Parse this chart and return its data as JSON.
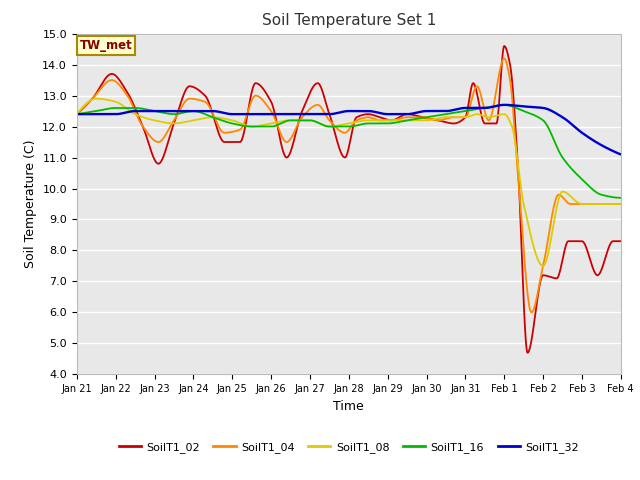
{
  "title": "Soil Temperature Set 1",
  "xlabel": "Time",
  "ylabel": "Soil Temperature (C)",
  "ylim": [
    4.0,
    15.0
  ],
  "yticks": [
    4.0,
    5.0,
    6.0,
    7.0,
    8.0,
    9.0,
    10.0,
    11.0,
    12.0,
    13.0,
    14.0,
    15.0
  ],
  "annotation": "TW_met",
  "plot_bg": "#e8e8e8",
  "fig_bg": "#ffffff",
  "series_colors": {
    "SoilT1_02": "#cc0000",
    "SoilT1_04": "#ff8800",
    "SoilT1_08": "#ddcc00",
    "SoilT1_16": "#00bb00",
    "SoilT1_32": "#0000cc"
  },
  "legend_labels": [
    "SoilT1_02",
    "SoilT1_04",
    "SoilT1_08",
    "SoilT1_16",
    "SoilT1_32"
  ],
  "xtick_labels": [
    "Jan 21",
    "Jan 22",
    "Jan 23",
    "Jan 24",
    "Jan 25",
    "Jan 26",
    "Jan 27",
    "Jan 28",
    "Jan 29",
    "Jan 30",
    "Jan 31",
    "Feb 1",
    "Feb 2",
    "Feb 3",
    "Feb 4"
  ],
  "cp02_x": [
    0.0,
    0.4,
    0.9,
    1.3,
    1.7,
    2.1,
    2.5,
    2.9,
    3.3,
    3.8,
    4.2,
    4.6,
    5.0,
    5.4,
    5.8,
    6.2,
    6.5,
    6.9,
    7.2,
    7.5,
    7.8,
    8.1,
    8.5,
    8.9,
    9.3,
    9.7,
    10.0,
    10.2,
    10.5,
    10.8,
    11.0,
    11.15,
    11.35,
    11.6,
    12.0,
    12.35,
    12.65,
    13.0,
    13.4,
    13.8,
    14.0
  ],
  "cp02_y": [
    12.4,
    12.9,
    13.7,
    13.1,
    12.0,
    10.8,
    12.1,
    13.3,
    13.0,
    11.5,
    11.5,
    13.4,
    12.8,
    11.0,
    12.5,
    13.4,
    12.4,
    11.0,
    12.3,
    12.4,
    12.3,
    12.2,
    12.4,
    12.3,
    12.2,
    12.1,
    12.3,
    13.4,
    12.1,
    12.1,
    14.6,
    14.0,
    10.8,
    4.7,
    7.2,
    7.1,
    8.3,
    8.3,
    7.2,
    8.3,
    8.3
  ],
  "cp04_x": [
    0.0,
    0.4,
    0.9,
    1.3,
    1.7,
    2.1,
    2.5,
    2.9,
    3.3,
    3.8,
    4.2,
    4.6,
    5.0,
    5.4,
    5.8,
    6.2,
    6.5,
    6.9,
    7.2,
    7.5,
    7.8,
    8.1,
    8.5,
    8.9,
    9.3,
    9.7,
    10.0,
    10.3,
    10.6,
    11.0,
    11.15,
    11.35,
    11.7,
    12.0,
    12.4,
    12.7,
    13.1,
    13.5,
    14.0
  ],
  "cp04_y": [
    12.4,
    12.9,
    13.5,
    13.0,
    12.0,
    11.5,
    12.2,
    12.9,
    12.8,
    11.8,
    11.9,
    13.0,
    12.5,
    11.5,
    12.3,
    12.7,
    12.2,
    11.8,
    12.2,
    12.3,
    12.2,
    12.2,
    12.3,
    12.3,
    12.2,
    12.3,
    12.3,
    13.3,
    12.2,
    14.2,
    13.5,
    10.5,
    6.0,
    7.5,
    9.8,
    9.5,
    9.5,
    9.5,
    9.5
  ],
  "cp08_x": [
    0.0,
    0.5,
    1.0,
    1.5,
    2.0,
    2.5,
    3.0,
    3.5,
    4.0,
    4.5,
    5.0,
    5.5,
    6.0,
    6.5,
    7.0,
    7.5,
    8.0,
    8.5,
    9.0,
    9.5,
    10.0,
    10.3,
    10.6,
    11.0,
    11.2,
    11.5,
    12.0,
    12.5,
    13.0,
    13.5,
    14.0
  ],
  "cp08_y": [
    12.4,
    12.9,
    12.8,
    12.4,
    12.2,
    12.1,
    12.2,
    12.3,
    12.2,
    12.0,
    12.1,
    12.2,
    12.2,
    12.0,
    12.1,
    12.2,
    12.2,
    12.2,
    12.2,
    12.3,
    12.3,
    12.4,
    12.3,
    12.4,
    12.0,
    9.5,
    7.5,
    9.9,
    9.5,
    9.5,
    9.5
  ],
  "cp16_x": [
    0.0,
    0.5,
    1.0,
    1.5,
    2.0,
    2.5,
    3.0,
    3.5,
    4.0,
    4.5,
    5.0,
    5.5,
    6.0,
    6.5,
    7.0,
    7.5,
    8.0,
    8.5,
    9.0,
    9.5,
    10.0,
    10.5,
    11.0,
    11.5,
    12.0,
    12.5,
    13.0,
    13.5,
    14.0
  ],
  "cp16_y": [
    12.4,
    12.5,
    12.6,
    12.6,
    12.5,
    12.4,
    12.5,
    12.3,
    12.1,
    12.0,
    12.0,
    12.2,
    12.2,
    12.0,
    12.0,
    12.1,
    12.1,
    12.2,
    12.3,
    12.4,
    12.5,
    12.6,
    12.7,
    12.5,
    12.2,
    11.0,
    10.3,
    9.8,
    9.7
  ],
  "cp32_x": [
    0.0,
    0.5,
    1.0,
    1.5,
    2.0,
    2.5,
    3.0,
    3.5,
    4.0,
    4.5,
    5.0,
    5.5,
    6.0,
    6.5,
    7.0,
    7.5,
    8.0,
    8.5,
    9.0,
    9.5,
    10.0,
    10.5,
    11.0,
    11.5,
    12.0,
    12.5,
    13.0,
    13.5,
    14.0
  ],
  "cp32_y": [
    12.4,
    12.4,
    12.4,
    12.5,
    12.5,
    12.5,
    12.5,
    12.5,
    12.4,
    12.4,
    12.4,
    12.4,
    12.4,
    12.4,
    12.5,
    12.5,
    12.4,
    12.4,
    12.5,
    12.5,
    12.6,
    12.6,
    12.7,
    12.65,
    12.6,
    12.3,
    11.8,
    11.4,
    11.1
  ]
}
